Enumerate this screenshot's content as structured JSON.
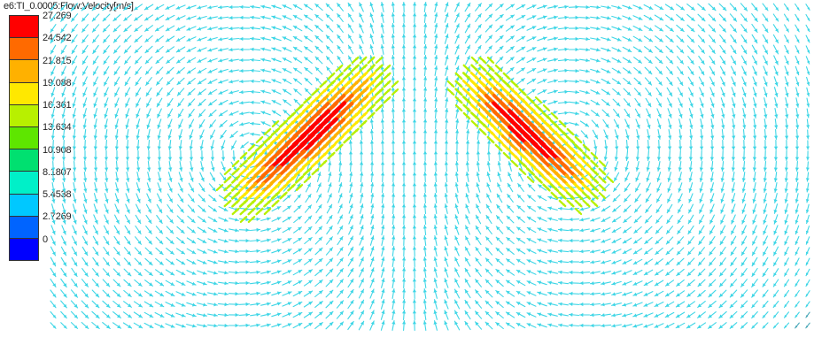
{
  "plot": {
    "title": "e6:TI_0.0005:Flow:Velocity[m/s]"
  },
  "legend": {
    "levels": [
      {
        "label": "27.269",
        "color": "#ff0000"
      },
      {
        "label": "24.542",
        "color": "#ff6a00"
      },
      {
        "label": "21.815",
        "color": "#ffb100"
      },
      {
        "label": "19.088",
        "color": "#ffe800"
      },
      {
        "label": "16.361",
        "color": "#b8f000"
      },
      {
        "label": "13.634",
        "color": "#5ee600"
      },
      {
        "label": "10.908",
        "color": "#00e070"
      },
      {
        "label": "8.1807",
        "color": "#00f0c8"
      },
      {
        "label": "5.4538",
        "color": "#00c8ff"
      },
      {
        "label": "2.7269",
        "color": "#0064ff"
      },
      {
        "label": "0",
        "color": "#0000ff"
      }
    ]
  }
}
